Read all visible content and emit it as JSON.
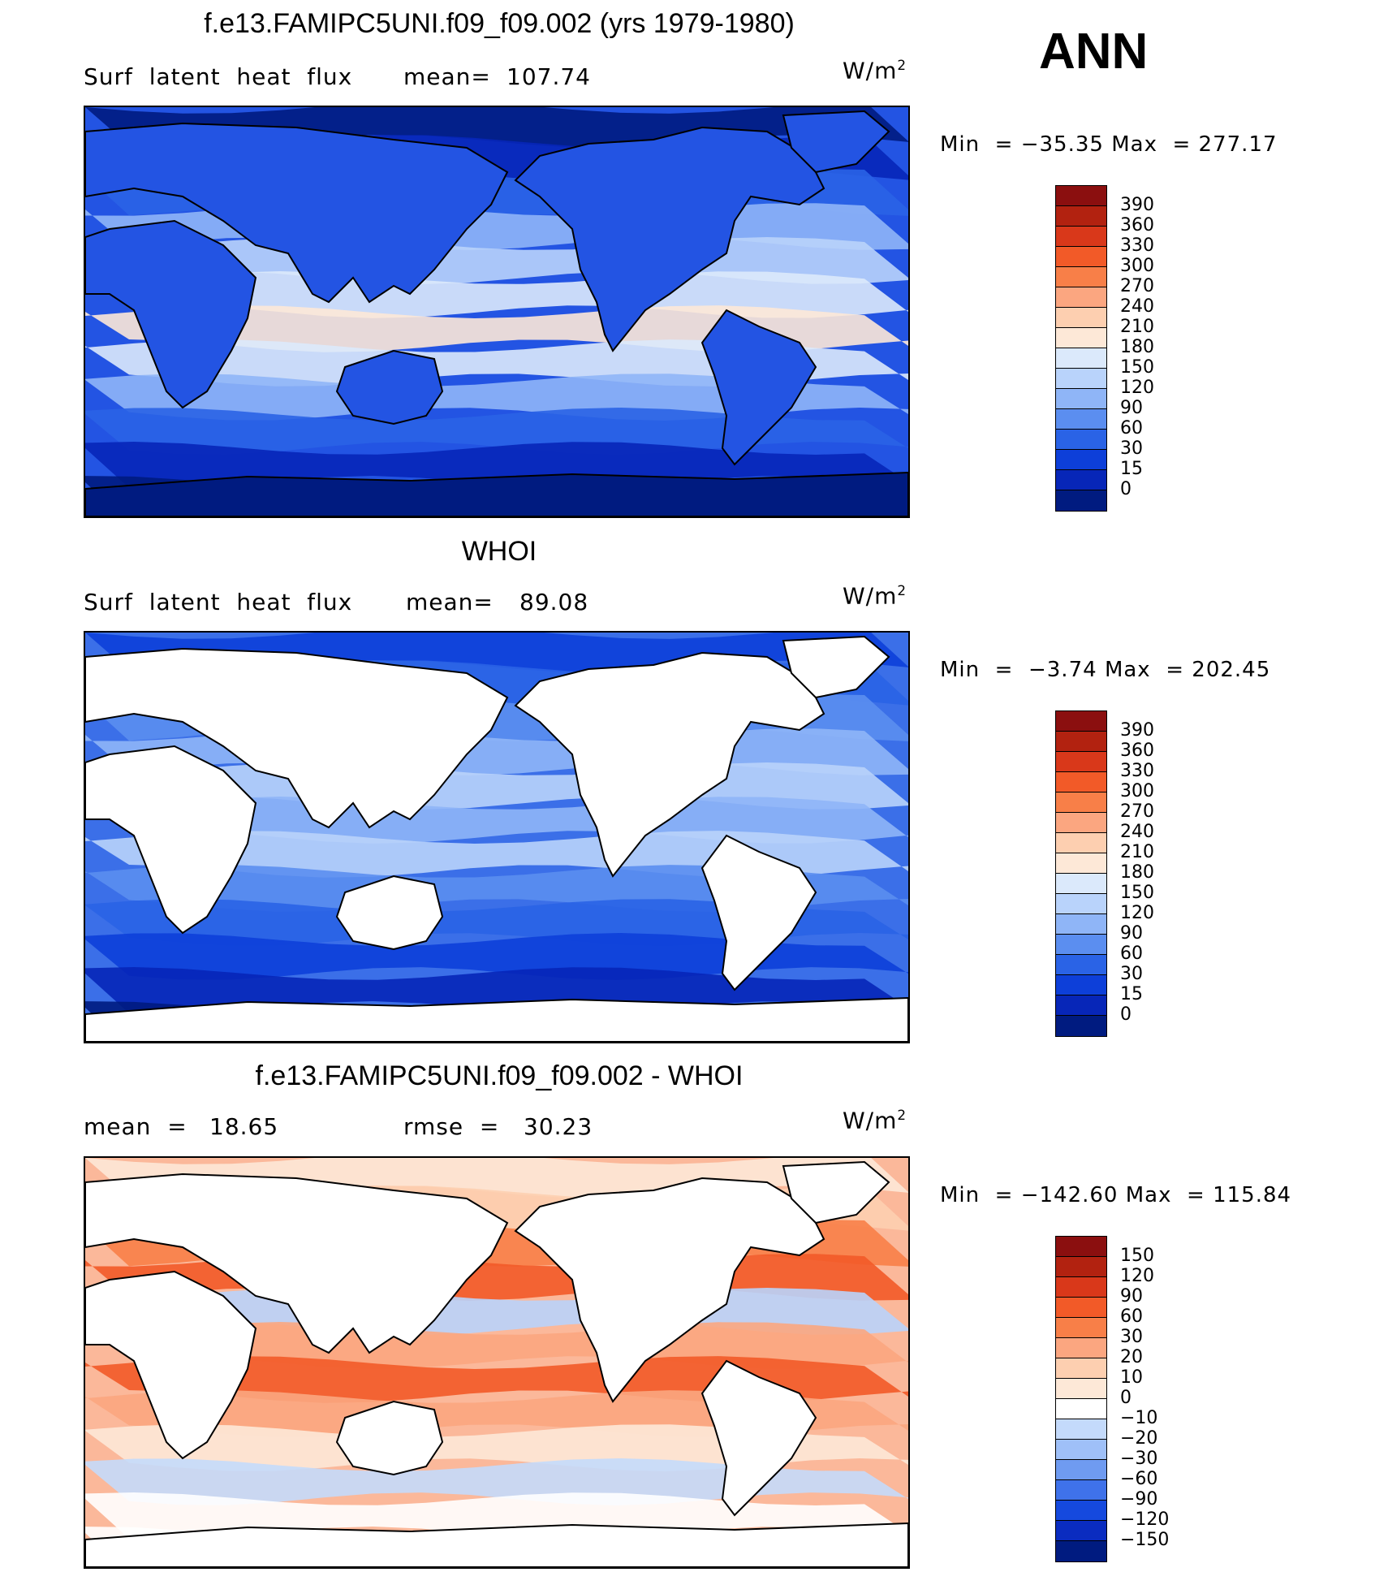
{
  "header": {
    "season": "ANN"
  },
  "panels": [
    {
      "title": "f.e13.FAMIPC5UNI.f09_f09.002 (yrs 1979-1980)",
      "variable": "Surf  latent  heat  flux",
      "stat1_label": "mean=",
      "stat1_value": "107.74",
      "stat2_label": "",
      "stat2_value": "",
      "units": "W/m",
      "units_sup": "2",
      "min_label": "Min  =",
      "min_value": "−35.35",
      "max_label": "Max  =",
      "max_value": "277.17",
      "colorbar": {
        "levels": [
          "390",
          "360",
          "330",
          "300",
          "270",
          "240",
          "210",
          "180",
          "150",
          "120",
          "90",
          "60",
          "30",
          "15",
          "0"
        ],
        "colors": [
          "#8b0f0f",
          "#b22210",
          "#d9381a",
          "#f25a28",
          "#f87f48",
          "#fba680",
          "#fdcfb0",
          "#fde8d7",
          "#dbe9fb",
          "#b9d3fb",
          "#8fb5f7",
          "#5b8ef0",
          "#2a63e6",
          "#0d3fd9",
          "#0726b8",
          "#001b80"
        ]
      },
      "field": {
        "land": "filled",
        "base_color": "#2354e3"
      }
    },
    {
      "title": "WHOI",
      "variable": "Surf  latent  heat  flux",
      "stat1_label": "mean=",
      "stat1_value": "89.08",
      "stat2_label": "",
      "stat2_value": "",
      "units": "W/m",
      "units_sup": "2",
      "min_label": "Min  =",
      "min_value": "−3.74",
      "max_label": "Max  =",
      "max_value": "202.45",
      "colorbar": {
        "levels": [
          "390",
          "360",
          "330",
          "300",
          "270",
          "240",
          "210",
          "180",
          "150",
          "120",
          "90",
          "60",
          "30",
          "15",
          "0"
        ],
        "colors": [
          "#8b0f0f",
          "#b22210",
          "#d9381a",
          "#f25a28",
          "#f87f48",
          "#fba680",
          "#fdcfb0",
          "#fde8d7",
          "#dbe9fb",
          "#b9d3fb",
          "#8fb5f7",
          "#5b8ef0",
          "#2a63e6",
          "#0d3fd9",
          "#0726b8",
          "#001b80"
        ]
      },
      "field": {
        "land": "white",
        "base_color": "#3b6fe8"
      }
    },
    {
      "title": "f.e13.FAMIPC5UNI.f09_f09.002 - WHOI",
      "variable": "",
      "stat1_label": "mean  =",
      "stat1_value": "18.65",
      "stat2_label": "rmse  =",
      "stat2_value": "30.23",
      "units": "W/m",
      "units_sup": "2",
      "min_label": "Min  =",
      "min_value": "−142.60",
      "max_label": "Max  =",
      "max_value": "115.84",
      "colorbar": {
        "levels": [
          "150",
          "120",
          "90",
          "60",
          "30",
          "20",
          "10",
          "0",
          "−10",
          "−20",
          "−30",
          "−60",
          "−90",
          "−120",
          "−150"
        ],
        "colors": [
          "#8b0f0f",
          "#b22210",
          "#d9381a",
          "#f25a28",
          "#f87f48",
          "#fba680",
          "#fdcfb0",
          "#fde8d7",
          "#ffffff",
          "#c4dafb",
          "#9fc0f8",
          "#6f9bf1",
          "#3f72ea",
          "#1549de",
          "#0a2cc0",
          "#001b80"
        ]
      },
      "field": {
        "land": "white",
        "base_color": "#fbb89a"
      }
    }
  ],
  "chart_data": [
    {
      "type": "heatmap",
      "title": "f.e13.FAMIPC5UNI.f09_f09.002 (yrs 1979-1980)",
      "subtitle": "Surf  latent  heat  flux",
      "units": "W/m2",
      "mean": 107.74,
      "min": -35.35,
      "max": 277.17,
      "contour_levels": [
        0,
        15,
        30,
        60,
        90,
        120,
        150,
        180,
        210,
        240,
        270,
        300,
        330,
        360,
        390
      ]
    },
    {
      "type": "heatmap",
      "title": "WHOI",
      "subtitle": "Surf  latent  heat  flux",
      "units": "W/m2",
      "mean": 89.08,
      "min": -3.74,
      "max": 202.45,
      "contour_levels": [
        0,
        15,
        30,
        60,
        90,
        120,
        150,
        180,
        210,
        240,
        270,
        300,
        330,
        360,
        390
      ]
    },
    {
      "type": "heatmap",
      "title": "f.e13.FAMIPC5UNI.f09_f09.002 - WHOI",
      "units": "W/m2",
      "mean": 18.65,
      "rmse": 30.23,
      "min": -142.6,
      "max": 115.84,
      "contour_levels": [
        -150,
        -120,
        -90,
        -60,
        -30,
        -20,
        -10,
        0,
        10,
        20,
        30,
        60,
        90,
        120,
        150
      ]
    }
  ]
}
